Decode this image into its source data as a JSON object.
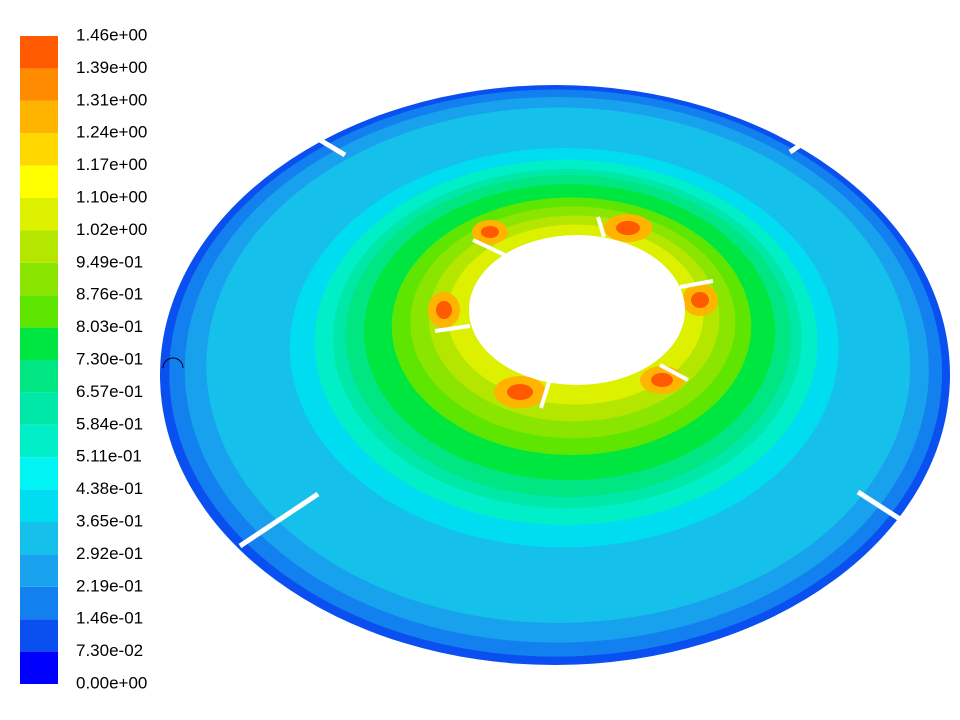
{
  "chart_data": {
    "type": "contour",
    "colorbar": {
      "levels": [
        {
          "value": 0,
          "label": "0.00e+00"
        },
        {
          "value": 0.073,
          "label": "7.30e-02"
        },
        {
          "value": 0.146,
          "label": "1.46e-01"
        },
        {
          "value": 0.219,
          "label": "2.19e-01"
        },
        {
          "value": 0.292,
          "label": "2.92e-01"
        },
        {
          "value": 0.365,
          "label": "3.65e-01"
        },
        {
          "value": 0.438,
          "label": "4.38e-01"
        },
        {
          "value": 0.511,
          "label": "5.11e-01"
        },
        {
          "value": 0.584,
          "label": "5.84e-01"
        },
        {
          "value": 0.657,
          "label": "6.57e-01"
        },
        {
          "value": 0.73,
          "label": "7.30e-01"
        },
        {
          "value": 0.803,
          "label": "8.03e-01"
        },
        {
          "value": 0.876,
          "label": "8.76e-01"
        },
        {
          "value": 0.949,
          "label": "9.49e-01"
        },
        {
          "value": 1.022,
          "label": "1.02e+00"
        },
        {
          "value": 1.095,
          "label": "1.10e+00"
        },
        {
          "value": 1.168,
          "label": "1.17e+00"
        },
        {
          "value": 1.241,
          "label": "1.24e+00"
        },
        {
          "value": 1.314,
          "label": "1.31e+00"
        },
        {
          "value": 1.387,
          "label": "1.39e+00"
        },
        {
          "value": 1.46,
          "label": "1.46e+00"
        }
      ],
      "colors": [
        "#0000ff",
        "#0a50f0",
        "#1380f0",
        "#18a2ee",
        "#15c0ea",
        "#00dcf0",
        "#00f4f4",
        "#00eec8",
        "#00e8a8",
        "#00e682",
        "#00e640",
        "#5ee600",
        "#8ae600",
        "#b4e600",
        "#dcf000",
        "#ffff00",
        "#ffd800",
        "#ffb400",
        "#ff8c00",
        "#ff5a00",
        "#ff0000"
      ]
    }
  }
}
